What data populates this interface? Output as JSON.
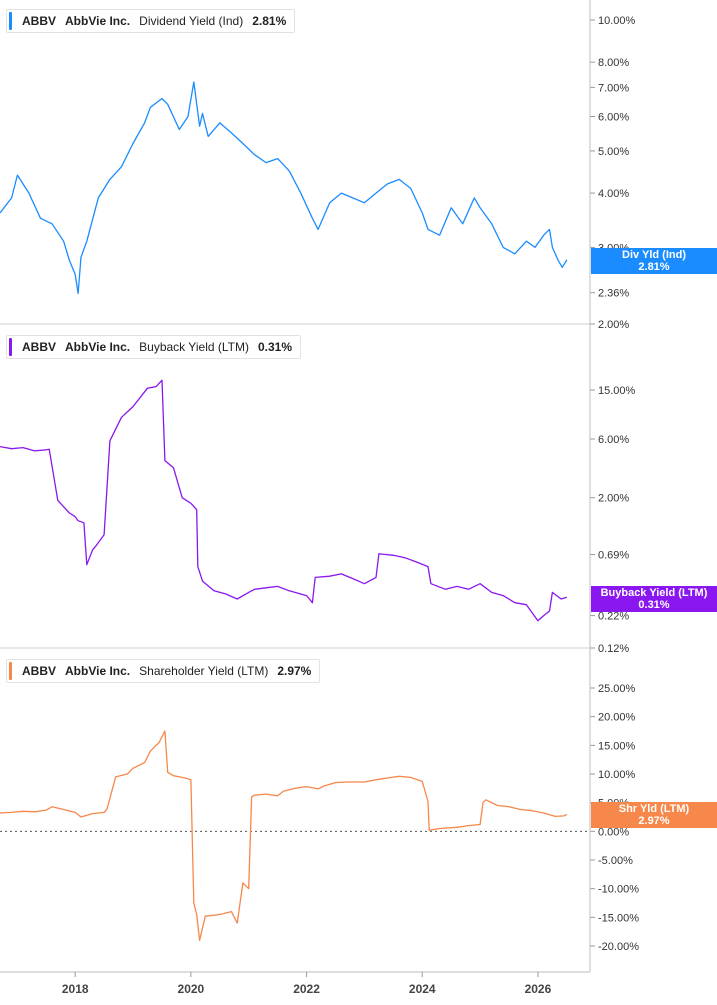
{
  "panels": [
    {
      "ticker": "ABBV",
      "company": "AbbVie Inc.",
      "metric": "Dividend Yield (Ind)",
      "value": "2.81%",
      "tag_label": "Div Yld (Ind)",
      "tag_value": "2.81%",
      "color": "#1a8cff"
    },
    {
      "ticker": "ABBV",
      "company": "AbbVie Inc.",
      "metric": "Buyback Yield (LTM)",
      "value": "0.31%",
      "tag_label": "Buyback Yield (LTM)",
      "tag_value": "0.31%",
      "color": "#8a17f0"
    },
    {
      "ticker": "ABBV",
      "company": "AbbVie Inc.",
      "metric": "Shareholder Yield (LTM)",
      "value": "2.97%",
      "tag_label": "Shr Yld (LTM)",
      "tag_value": "2.97%",
      "color": "#f5884a"
    }
  ],
  "chart_data": [
    {
      "type": "line",
      "yscale": "log",
      "ylim": [
        2.0,
        11.5
      ],
      "yticks": [
        "10.00%",
        "8.00%",
        "7.00%",
        "6.00%",
        "5.00%",
        "4.00%",
        "3.00%",
        "2.36%",
        "2.00%"
      ],
      "ytick_values": [
        10,
        8,
        7,
        6,
        5,
        4,
        3,
        2.36,
        2
      ],
      "xlim": [
        2016.7,
        2026.9
      ],
      "series": [
        {
          "color": "#1a8cff",
          "x": [
            2016.7,
            2016.9,
            2017.0,
            2017.2,
            2017.4,
            2017.6,
            2017.8,
            2017.9,
            2018.0,
            2018.05,
            2018.1,
            2018.2,
            2018.4,
            2018.6,
            2018.8,
            2019.0,
            2019.2,
            2019.3,
            2019.5,
            2019.6,
            2019.8,
            2019.95,
            2020.05,
            2020.15,
            2020.2,
            2020.3,
            2020.5,
            2020.7,
            2020.9,
            2021.1,
            2021.3,
            2021.5,
            2021.7,
            2021.9,
            2022.1,
            2022.2,
            2022.4,
            2022.6,
            2022.8,
            2023.0,
            2023.2,
            2023.4,
            2023.6,
            2023.8,
            2024.0,
            2024.1,
            2024.3,
            2024.5,
            2024.7,
            2024.9,
            2025.0,
            2025.2,
            2025.4,
            2025.6,
            2025.8,
            2025.95,
            2026.1,
            2026.2,
            2026.25,
            2026.35,
            2026.42,
            2026.5
          ],
          "y": [
            3.6,
            3.9,
            4.4,
            4.0,
            3.5,
            3.4,
            3.1,
            2.8,
            2.6,
            2.35,
            2.85,
            3.1,
            3.9,
            4.3,
            4.6,
            5.2,
            5.8,
            6.3,
            6.6,
            6.4,
            5.6,
            6.0,
            7.2,
            5.7,
            6.1,
            5.4,
            5.8,
            5.5,
            5.2,
            4.9,
            4.7,
            4.8,
            4.5,
            4.0,
            3.5,
            3.3,
            3.8,
            4.0,
            3.9,
            3.8,
            4.0,
            4.2,
            4.3,
            4.1,
            3.6,
            3.3,
            3.2,
            3.7,
            3.4,
            3.9,
            3.7,
            3.4,
            3.0,
            2.9,
            3.1,
            3.0,
            3.2,
            3.3,
            3.0,
            2.8,
            2.7,
            2.81
          ]
        }
      ]
    },
    {
      "type": "line",
      "yscale": "log",
      "ylim": [
        0.12,
        40
      ],
      "yticks": [
        "15.00%",
        "6.00%",
        "2.00%",
        "0.69%",
        "0.22%",
        "0.12%"
      ],
      "ytick_values": [
        15,
        6,
        2,
        0.69,
        0.22,
        0.12
      ],
      "xlim": [
        2016.7,
        2026.9
      ],
      "series": [
        {
          "color": "#8a17f0",
          "x": [
            2016.7,
            2016.9,
            2017.1,
            2017.3,
            2017.5,
            2017.55,
            2017.7,
            2017.9,
            2018.0,
            2018.05,
            2018.15,
            2018.2,
            2018.3,
            2018.35,
            2018.5,
            2018.6,
            2018.8,
            2019.0,
            2019.2,
            2019.25,
            2019.4,
            2019.45,
            2019.5,
            2019.55,
            2019.7,
            2019.85,
            2020.0,
            2020.1,
            2020.12,
            2020.2,
            2020.4,
            2020.6,
            2020.8,
            2021.0,
            2021.1,
            2021.3,
            2021.5,
            2021.7,
            2022.0,
            2022.1,
            2022.15,
            2022.4,
            2022.6,
            2022.8,
            2023.0,
            2023.2,
            2023.25,
            2023.5,
            2023.7,
            2023.9,
            2024.1,
            2024.15,
            2024.4,
            2024.6,
            2024.8,
            2025.0,
            2025.2,
            2025.4,
            2025.6,
            2025.8,
            2026.0,
            2026.1,
            2026.2,
            2026.25,
            2026.4,
            2026.5
          ],
          "y": [
            5.2,
            5.0,
            5.1,
            4.8,
            4.9,
            4.95,
            1.9,
            1.5,
            1.4,
            1.3,
            1.25,
            0.57,
            0.75,
            0.8,
            1.0,
            5.8,
            9.0,
            11.0,
            14.5,
            15.5,
            16.0,
            17.0,
            18.0,
            4.0,
            3.5,
            2.0,
            1.8,
            1.6,
            0.55,
            0.42,
            0.35,
            0.33,
            0.3,
            0.34,
            0.36,
            0.37,
            0.38,
            0.35,
            0.32,
            0.28,
            0.45,
            0.46,
            0.48,
            0.44,
            0.4,
            0.45,
            0.7,
            0.68,
            0.65,
            0.6,
            0.55,
            0.4,
            0.36,
            0.38,
            0.36,
            0.4,
            0.34,
            0.32,
            0.28,
            0.27,
            0.2,
            0.22,
            0.24,
            0.34,
            0.3,
            0.31
          ]
        }
      ]
    },
    {
      "type": "line",
      "yscale": "linear",
      "ylim": [
        -25.5,
        28
      ],
      "yticks": [
        "25.00%",
        "20.00%",
        "15.00%",
        "10.00%",
        "5.00%",
        "0.00%",
        "-5.00%",
        "-10.00%",
        "-15.00%",
        "-20.00%"
      ],
      "ytick_values": [
        25,
        20,
        15,
        10,
        5,
        0,
        -5,
        -10,
        -15,
        -20
      ],
      "reference_line": 0,
      "xlim": [
        2016.7,
        2026.9
      ],
      "series": [
        {
          "color": "#f5884a",
          "x": [
            2016.7,
            2016.9,
            2017.1,
            2017.3,
            2017.5,
            2017.6,
            2017.8,
            2018.0,
            2018.1,
            2018.3,
            2018.5,
            2018.55,
            2018.7,
            2018.9,
            2019.0,
            2019.2,
            2019.3,
            2019.45,
            2019.55,
            2019.6,
            2019.7,
            2019.9,
            2020.0,
            2020.05,
            2020.1,
            2020.15,
            2020.25,
            2020.5,
            2020.7,
            2020.8,
            2020.9,
            2021.0,
            2021.05,
            2021.1,
            2021.3,
            2021.5,
            2021.6,
            2021.8,
            2022.0,
            2022.2,
            2022.3,
            2022.5,
            2022.7,
            2023.0,
            2023.2,
            2023.4,
            2023.6,
            2023.8,
            2024.0,
            2024.1,
            2024.12,
            2024.3,
            2024.6,
            2024.8,
            2025.0,
            2025.05,
            2025.1,
            2025.3,
            2025.5,
            2025.7,
            2025.9,
            2026.1,
            2026.3,
            2026.45,
            2026.5
          ],
          "y": [
            3.2,
            3.3,
            3.5,
            3.4,
            3.7,
            4.3,
            3.8,
            3.3,
            2.5,
            3.1,
            3.3,
            3.9,
            9.5,
            10.0,
            11.0,
            12.0,
            14.0,
            15.5,
            17.5,
            10.3,
            9.7,
            9.3,
            9.0,
            -12.5,
            -14.5,
            -19.0,
            -14.8,
            -14.5,
            -14.0,
            -16.0,
            -9.0,
            -10.0,
            6.0,
            6.3,
            6.5,
            6.2,
            7.0,
            7.5,
            7.8,
            7.4,
            7.9,
            8.5,
            8.6,
            8.6,
            9.0,
            9.3,
            9.6,
            9.4,
            8.7,
            5.2,
            0.2,
            0.5,
            0.7,
            1.0,
            1.2,
            5.0,
            5.5,
            4.5,
            4.3,
            3.8,
            3.6,
            3.2,
            2.6,
            2.7,
            2.97
          ]
        }
      ]
    }
  ],
  "x_axis": {
    "labels": [
      "2018",
      "2020",
      "2022",
      "2024",
      "2026"
    ],
    "values": [
      2018,
      2020,
      2022,
      2024,
      2026
    ]
  }
}
